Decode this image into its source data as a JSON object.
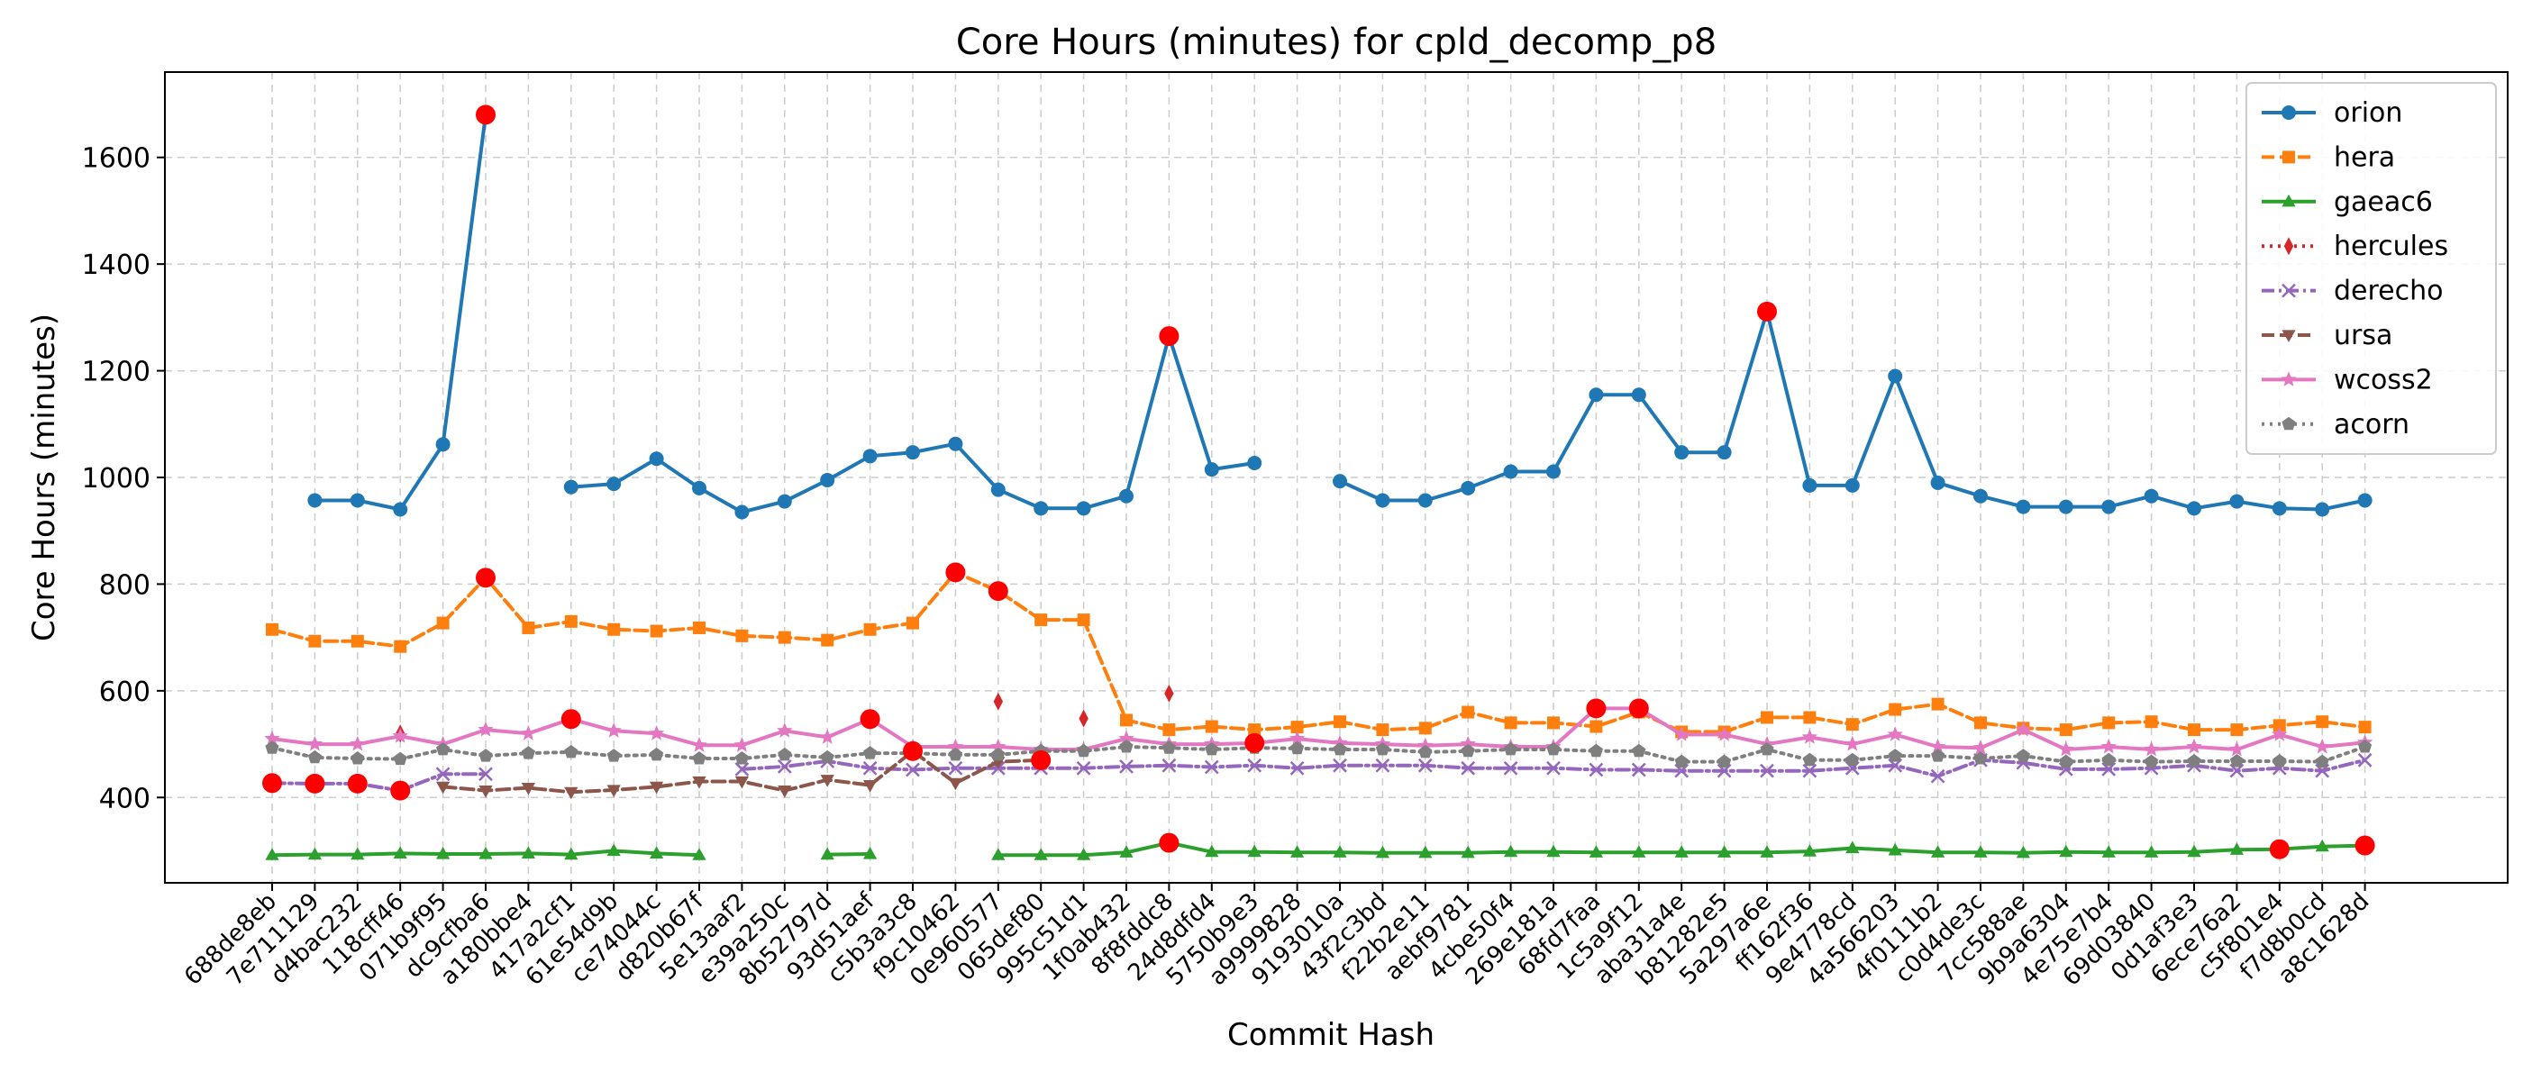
{
  "chart_data": {
    "type": "line",
    "title": "Core Hours (minutes) for cpld_decomp_p8",
    "xlabel": "Commit Hash",
    "ylabel": "Core Hours (minutes)",
    "ylim": [
      240,
      1760
    ],
    "yticks": [
      400,
      600,
      800,
      1000,
      1200,
      1400,
      1600
    ],
    "grid": true,
    "legend_position": "top-right",
    "categories": [
      "688de8eb",
      "7e711129",
      "d4bac232",
      "118cff46",
      "071b9f95",
      "dc9cfba6",
      "a180bbe4",
      "417a2cf1",
      "61e54d9b",
      "ce74044c",
      "d820b67f",
      "5e13aaf2",
      "e39a250c",
      "8b52797d",
      "93d51aef",
      "c5b3a3c8",
      "f9c10462",
      "0e960577",
      "065def80",
      "995c51d1",
      "1f0ab432",
      "8f8fddc8",
      "24d8dfd4",
      "5750b9e3",
      "a9999828",
      "9193010a",
      "43f2c3bd",
      "f22b2e11",
      "aebf9781",
      "4cbe50f4",
      "269e181a",
      "68fd7faa",
      "1c5a9f12",
      "aba31a4e",
      "b81282e5",
      "5a297a6e",
      "ff162f36",
      "9e4778cd",
      "4a566203",
      "4f0111b2",
      "c0d4de3c",
      "7cc588ae",
      "9b9a6304",
      "4e75e7b4",
      "69d03840",
      "0d1af3e3",
      "6ece76a2",
      "c5f801e4",
      "f7d8b0cd",
      "a8c1628d"
    ],
    "series": [
      {
        "name": "orion",
        "color": "#1f77b4",
        "marker": "circle",
        "dash": "solid",
        "values": [
          null,
          957,
          957,
          940,
          1062,
          1680,
          null,
          982,
          988,
          1035,
          980,
          935,
          955,
          995,
          1040,
          1047,
          1063,
          977,
          942,
          942,
          965,
          1265,
          1015,
          1027,
          null,
          993,
          957,
          957,
          980,
          1011,
          1011,
          1155,
          1155,
          1047,
          1047,
          1311,
          985,
          985,
          1190,
          990,
          965,
          945,
          945,
          945,
          965,
          942,
          955,
          942,
          940,
          957
        ]
      },
      {
        "name": "hera",
        "color": "#ff7f0e",
        "marker": "square",
        "dash": "dashed",
        "values": [
          715,
          693,
          693,
          683,
          727,
          812,
          718,
          730,
          715,
          712,
          718,
          703,
          700,
          695,
          715,
          727,
          822,
          787,
          733,
          733,
          545,
          527,
          533,
          527,
          532,
          542,
          527,
          530,
          560,
          540,
          540,
          533,
          560,
          523,
          523,
          550,
          550,
          537,
          565,
          575,
          540,
          530,
          527,
          540,
          542,
          527,
          527,
          535,
          542,
          532
        ]
      },
      {
        "name": "gaeac6",
        "color": "#2ca02c",
        "marker": "triangle",
        "dash": "solid",
        "values": [
          292,
          293,
          293,
          295,
          294,
          294,
          295,
          293,
          300,
          295,
          292,
          null,
          null,
          293,
          294,
          null,
          null,
          292,
          292,
          292,
          297,
          315,
          298,
          298,
          297,
          297,
          296,
          296,
          296,
          298,
          298,
          297,
          297,
          297,
          297,
          297,
          299,
          305,
          301,
          297,
          297,
          296,
          298,
          297,
          297,
          298,
          302,
          303,
          308,
          310
        ]
      },
      {
        "name": "hercules",
        "color": "#d62728",
        "marker": "diamond",
        "dash": "dotted",
        "values": [
          null,
          null,
          null,
          520,
          null,
          null,
          null,
          null,
          null,
          null,
          null,
          null,
          null,
          null,
          null,
          null,
          null,
          580,
          null,
          548,
          null,
          595,
          null,
          null,
          null,
          null,
          null,
          null,
          null,
          null,
          null,
          null,
          null,
          null,
          null,
          null,
          null,
          null,
          null,
          null,
          null,
          null,
          null,
          null,
          null,
          null,
          null,
          null,
          null,
          null
        ]
      },
      {
        "name": "derecho",
        "color": "#9467bd",
        "marker": "x",
        "dash": "dashdot",
        "values": [
          427,
          426,
          426,
          413,
          444,
          444,
          null,
          null,
          null,
          null,
          null,
          453,
          458,
          468,
          455,
          452,
          455,
          455,
          455,
          455,
          458,
          460,
          457,
          460,
          455,
          460,
          460,
          460,
          455,
          455,
          455,
          452,
          452,
          450,
          450,
          450,
          450,
          455,
          460,
          440,
          470,
          465,
          453,
          453,
          455,
          460,
          450,
          455,
          450,
          470
        ]
      },
      {
        "name": "ursa",
        "color": "#8c564b",
        "marker": "triangle-down",
        "dash": "dashed",
        "values": [
          null,
          null,
          null,
          null,
          420,
          413,
          418,
          410,
          414,
          420,
          430,
          430,
          413,
          433,
          423,
          487,
          427,
          467,
          470,
          null,
          null,
          null,
          null,
          null,
          null,
          null,
          null,
          null,
          null,
          null,
          null,
          null,
          null,
          null,
          null,
          null,
          null,
          null,
          null,
          null,
          null,
          null,
          null,
          null,
          null,
          null,
          null,
          null,
          null,
          null
        ]
      },
      {
        "name": "wcoss2",
        "color": "#e377c2",
        "marker": "star",
        "dash": "solid",
        "values": [
          510,
          500,
          500,
          515,
          500,
          527,
          520,
          547,
          525,
          520,
          498,
          498,
          525,
          513,
          547,
          495,
          495,
          495,
          490,
          490,
          510,
          500,
          500,
          502,
          510,
          502,
          500,
          497,
          500,
          495,
          495,
          567,
          567,
          518,
          518,
          500,
          513,
          500,
          518,
          495,
          493,
          527,
          490,
          495,
          490,
          495,
          490,
          518,
          495,
          503
        ]
      },
      {
        "name": "acorn",
        "color": "#7f7f7f",
        "marker": "pentagon",
        "dash": "dotted",
        "values": [
          493,
          475,
          473,
          472,
          490,
          478,
          483,
          485,
          478,
          480,
          473,
          473,
          480,
          475,
          483,
          483,
          480,
          480,
          487,
          487,
          495,
          493,
          490,
          493,
          492,
          490,
          490,
          485,
          487,
          490,
          490,
          487,
          487,
          467,
          467,
          490,
          470,
          470,
          478,
          478,
          473,
          478,
          467,
          470,
          467,
          468,
          468,
          468,
          467,
          495
        ]
      }
    ],
    "highlight_color": "#ff0000",
    "highlights": [
      {
        "series": "orion",
        "index": 5
      },
      {
        "series": "orion",
        "index": 21
      },
      {
        "series": "orion",
        "index": 35
      },
      {
        "series": "hera",
        "index": 5
      },
      {
        "series": "hera",
        "index": 16
      },
      {
        "series": "hera",
        "index": 17
      },
      {
        "series": "gaeac6",
        "index": 21
      },
      {
        "series": "gaeac6",
        "index": 47
      },
      {
        "series": "gaeac6",
        "index": 49
      },
      {
        "series": "derecho",
        "index": 0
      },
      {
        "series": "derecho",
        "index": 1
      },
      {
        "series": "derecho",
        "index": 2
      },
      {
        "series": "derecho",
        "index": 3
      },
      {
        "series": "ursa",
        "index": 15
      },
      {
        "series": "ursa",
        "index": 18
      },
      {
        "series": "wcoss2",
        "index": 7
      },
      {
        "series": "wcoss2",
        "index": 14
      },
      {
        "series": "wcoss2",
        "index": 23
      },
      {
        "series": "wcoss2",
        "index": 31
      },
      {
        "series": "wcoss2",
        "index": 32
      }
    ]
  }
}
